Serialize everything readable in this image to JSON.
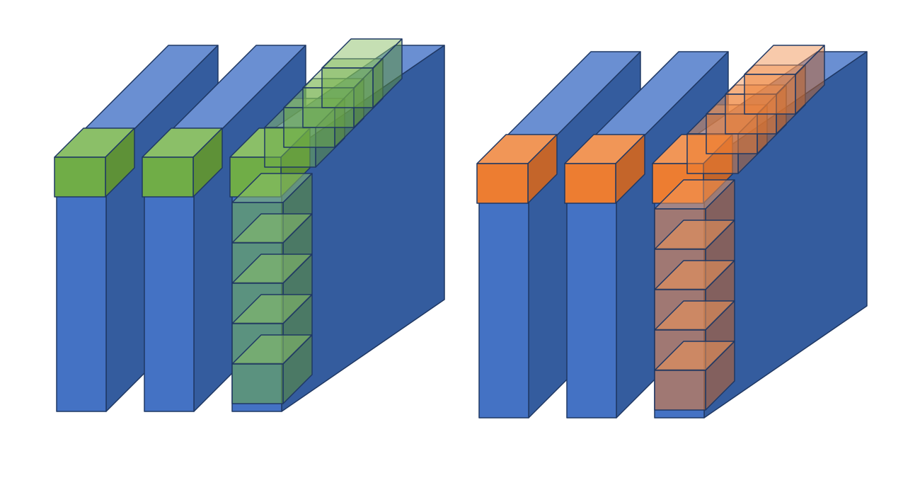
{
  "diagram": {
    "groups": [
      {
        "id": "left",
        "pillar_count": 3,
        "block_color": "green",
        "colors": {
          "pillar_front": "#4472C4",
          "pillar_side": "#345C9E",
          "pillar_top": "#6A8FD2",
          "cap_front": "#70AD47",
          "cap_side": "#5E9137",
          "cap_top": "#8BBF68",
          "block_front": "#70AD47",
          "block_side": "#5E9137",
          "block_top": "#8BBF68",
          "outline": "#1F3864"
        },
        "column_blocks": 6,
        "row_blocks": 4
      },
      {
        "id": "right",
        "pillar_count": 3,
        "block_color": "orange",
        "colors": {
          "pillar_front": "#4472C4",
          "pillar_side": "#345C9E",
          "pillar_top": "#6A8FD2",
          "cap_front": "#ED7D31",
          "cap_side": "#C4652A",
          "cap_top": "#F19657",
          "block_front": "#ED7D31",
          "block_side": "#C4652A",
          "block_top": "#F19657",
          "outline": "#1F3864"
        },
        "column_blocks": 6,
        "row_blocks": 4
      }
    ]
  }
}
